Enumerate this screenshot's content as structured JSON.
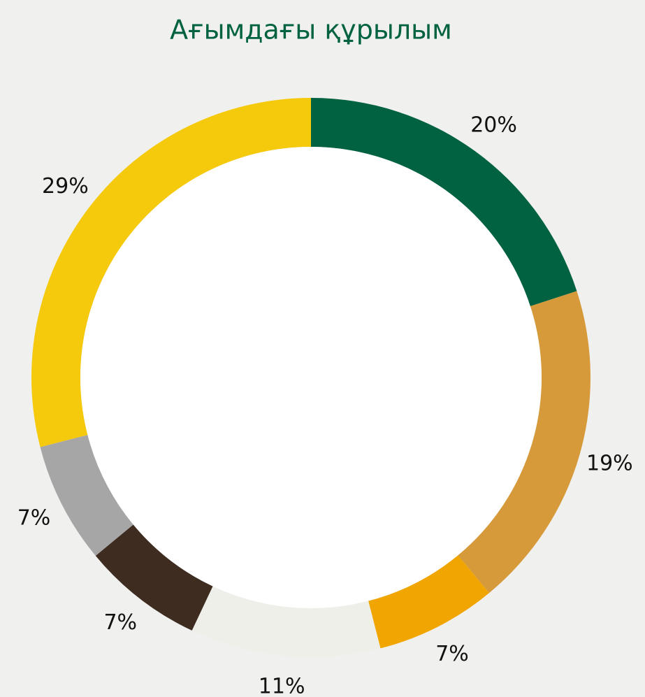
{
  "chart_data": {
    "type": "donut",
    "title": "Ағымдағы құрылым",
    "values": [
      20,
      19,
      7,
      11,
      7,
      7,
      29
    ],
    "value_labels": [
      "20%",
      "19%",
      "7%",
      "11%",
      "7%",
      "7%",
      "29%"
    ],
    "colors": [
      "#006241",
      "#d69a3a",
      "#f0a500",
      "#efefea",
      "#3e2c20",
      "#a6a6a6",
      "#f5c90c"
    ]
  }
}
